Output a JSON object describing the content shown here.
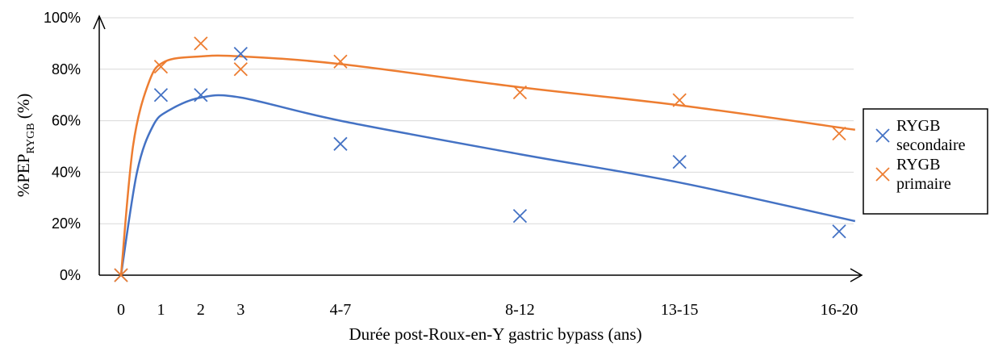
{
  "chart_data": {
    "type": "scatter",
    "title": "",
    "xlabel": "Durée post-Roux-en-Y gastric bypass (ans)",
    "ylabel": {
      "main": "%PEP",
      "sub": "RYGB",
      "suffix": " (%)"
    },
    "x_ticks": [
      {
        "pos": 0,
        "label": "0"
      },
      {
        "pos": 1,
        "label": "1"
      },
      {
        "pos": 2,
        "label": "2"
      },
      {
        "pos": 3,
        "label": "3"
      },
      {
        "pos": 5.5,
        "label": "4-7"
      },
      {
        "pos": 10,
        "label": "8-12"
      },
      {
        "pos": 14,
        "label": "13-15"
      },
      {
        "pos": 18,
        "label": "16-20"
      }
    ],
    "y_ticks": [
      "0%",
      "20%",
      "40%",
      "60%",
      "80%",
      "100%"
    ],
    "ylim": [
      0,
      100
    ],
    "grid": true,
    "legend_position": "right",
    "series": [
      {
        "name": "RYGB secondaire",
        "legend_lines": [
          "RYGB",
          "secondaire"
        ],
        "color": "#4472C4",
        "points": [
          [
            0,
            0
          ],
          [
            1,
            70
          ],
          [
            2,
            70
          ],
          [
            3,
            86
          ],
          [
            5.5,
            51
          ],
          [
            10,
            23
          ],
          [
            14,
            44
          ],
          [
            18,
            17
          ]
        ],
        "trend": [
          [
            0,
            0
          ],
          [
            0.4,
            40
          ],
          [
            0.8,
            58
          ],
          [
            1.2,
            64
          ],
          [
            2,
            69
          ],
          [
            3,
            69
          ],
          [
            5.5,
            60
          ],
          [
            10,
            47
          ],
          [
            14,
            36
          ],
          [
            18.4,
            21
          ]
        ]
      },
      {
        "name": "RYGB primaire",
        "legend_lines": [
          "RYGB",
          "primaire"
        ],
        "color": "#ED7D31",
        "points": [
          [
            0,
            0
          ],
          [
            1,
            81
          ],
          [
            2,
            90
          ],
          [
            3,
            80
          ],
          [
            5.5,
            83
          ],
          [
            10,
            71
          ],
          [
            14,
            68
          ],
          [
            18,
            55
          ]
        ],
        "trend": [
          [
            0,
            0
          ],
          [
            0.3,
            50
          ],
          [
            0.7,
            75
          ],
          [
            1.1,
            83
          ],
          [
            2,
            85
          ],
          [
            3,
            85
          ],
          [
            5.5,
            82
          ],
          [
            10,
            73
          ],
          [
            14,
            66
          ],
          [
            18.4,
            56.5
          ]
        ]
      }
    ]
  }
}
